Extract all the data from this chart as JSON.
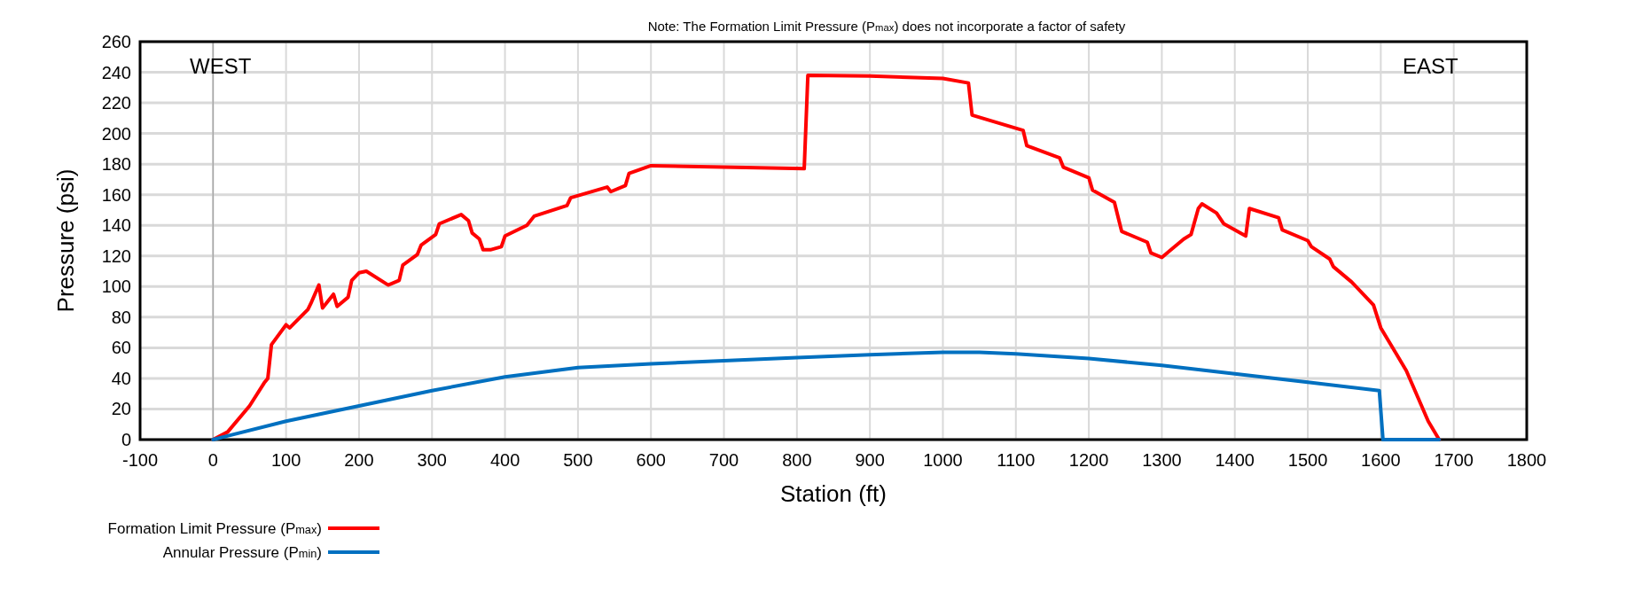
{
  "chart_data": {
    "type": "line",
    "title": "Note: The Formation Limit Pressure (P$_{max}$) does not incorporate a factor of safety",
    "xlabel": "Station (ft)",
    "ylabel": "Pressure (psi)",
    "xlim": [
      -100,
      1800
    ],
    "xticks": [
      -100,
      0,
      100,
      200,
      300,
      400,
      500,
      600,
      700,
      800,
      900,
      1000,
      1100,
      1200,
      1300,
      1400,
      1500,
      1600,
      1700,
      1800
    ],
    "ylim": [
      0,
      260
    ],
    "yticks": [
      0,
      20,
      40,
      60,
      80,
      100,
      120,
      140,
      160,
      180,
      200,
      220,
      240,
      260
    ],
    "grid": true,
    "legend": "bottom left",
    "line_style": "solid",
    "marker": "none",
    "annotations": [
      "WEST",
      "EAST"
    ],
    "ref_lines": [
      {
        "axis": "x",
        "value": 0,
        "color": "#a6a6a6"
      }
    ],
    "series": [
      {
        "name": "Formation Limit Pressure (P$_{max}$)",
        "color": "#ff0000",
        "x": [
          0,
          20,
          50,
          70,
          75,
          80,
          100,
          105,
          130,
          135,
          145,
          150,
          165,
          170,
          185,
          190,
          200,
          210,
          240,
          255,
          260,
          280,
          285,
          305,
          310,
          340,
          350,
          355,
          365,
          370,
          380,
          395,
          400,
          430,
          440,
          485,
          490,
          540,
          545,
          565,
          570,
          600,
          810,
          815,
          900,
          1000,
          1035,
          1040,
          1110,
          1115,
          1160,
          1165,
          1200,
          1205,
          1235,
          1245,
          1280,
          1285,
          1300,
          1310,
          1330,
          1340,
          1350,
          1355,
          1375,
          1385,
          1415,
          1420,
          1460,
          1465,
          1500,
          1505,
          1530,
          1535,
          1560,
          1590,
          1600,
          1620,
          1635,
          1645,
          1665,
          1680
        ],
        "values": [
          0,
          5,
          22,
          37,
          40,
          62,
          75,
          73,
          85,
          90,
          101,
          86,
          95,
          87,
          93,
          104,
          109,
          110,
          101,
          104,
          114,
          121,
          127,
          134,
          141,
          147,
          143,
          135,
          131,
          124,
          124,
          126,
          133,
          140,
          146,
          153,
          158,
          165,
          162,
          166,
          174,
          179,
          177,
          238,
          237.5,
          236,
          233,
          212,
          202,
          192,
          184,
          178,
          171,
          163,
          155,
          136,
          129,
          122,
          119,
          123,
          131,
          134,
          151,
          154,
          148,
          141,
          133,
          151,
          145,
          137,
          130,
          126,
          118,
          113,
          103,
          88,
          73,
          57,
          45,
          34,
          12,
          0
        ]
      },
      {
        "name": "Annular Pressure (P$_{min}$)",
        "color": "#0070c0",
        "x": [
          0,
          100,
          200,
          300,
          400,
          500,
          600,
          700,
          800,
          900,
          1000,
          1050,
          1100,
          1200,
          1300,
          1400,
          1500,
          1598,
          1603,
          1680
        ],
        "values": [
          0,
          12,
          22,
          32,
          41,
          47,
          49.5,
          51.5,
          53.5,
          55.5,
          57,
          57,
          56,
          53,
          48.5,
          43,
          37.5,
          32,
          0,
          0
        ]
      }
    ]
  }
}
